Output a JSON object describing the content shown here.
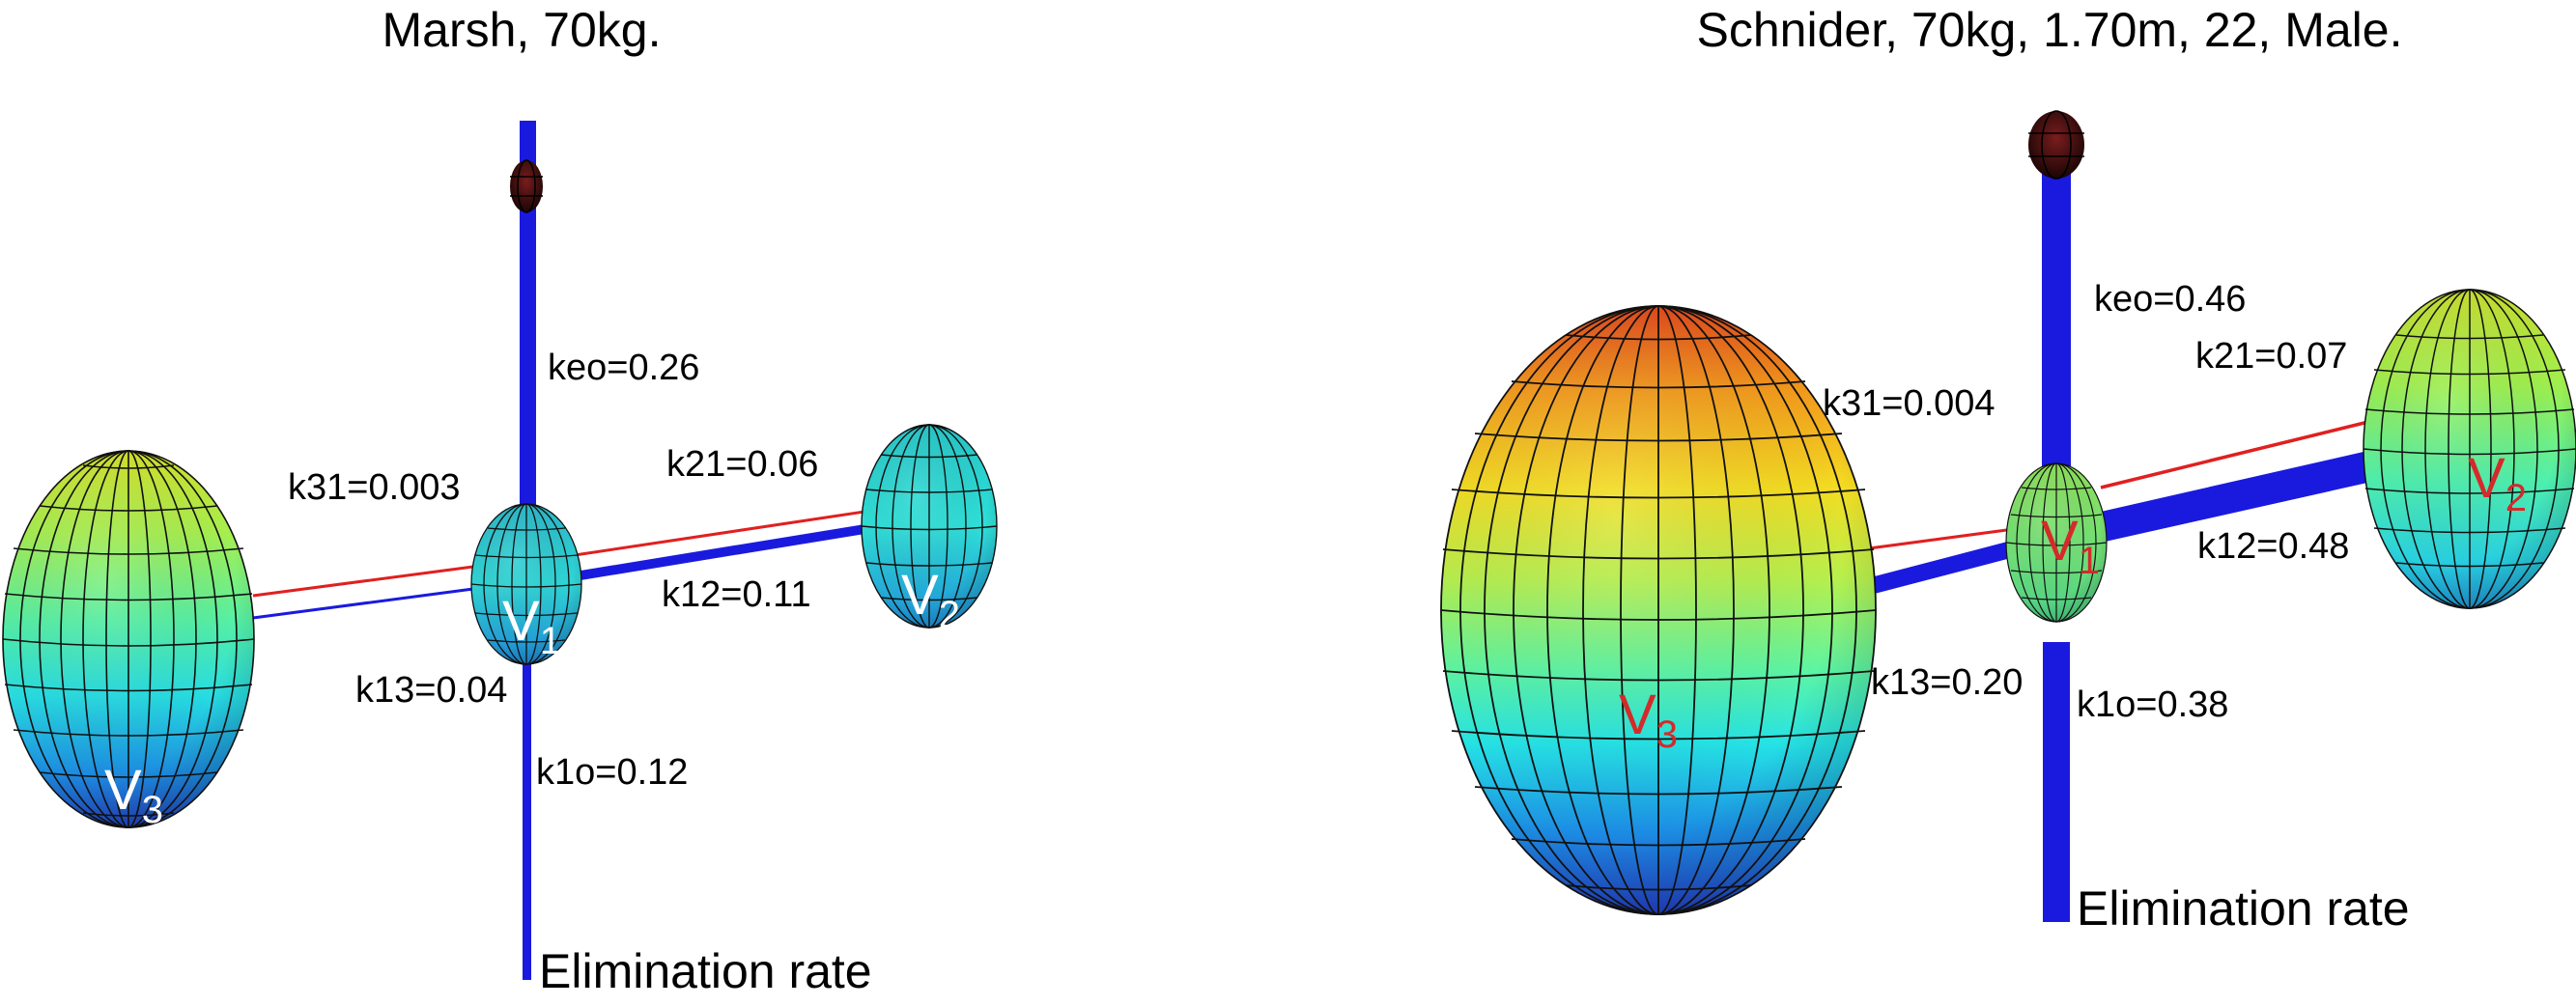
{
  "panels": [
    {
      "title": "Marsh, 70kg.",
      "keo": "keo=0.26",
      "k21": "k21=0.06",
      "k12": "k12=0.11",
      "k31": "k31=0.003",
      "k13": "k13=0.04",
      "k1o": "k1o=0.12",
      "elimination": "Elimination rate",
      "v1": {
        "letter": "V",
        "sub": "1"
      },
      "v2": {
        "letter": "V",
        "sub": "2"
      },
      "v3": {
        "letter": "V",
        "sub": "3"
      }
    },
    {
      "title": "Schnider, 70kg, 1.70m, 22, Male.",
      "keo": "keo=0.46",
      "k21": "k21=0.07",
      "k12": "k12=0.48",
      "k31": "k31=0.004",
      "k13": "k13=0.20",
      "k1o": "k1o=0.38",
      "elimination": "Elimination rate",
      "v1": {
        "letter": "V",
        "sub": "1"
      },
      "v2": {
        "letter": "V",
        "sub": "2"
      },
      "v3": {
        "letter": "V",
        "sub": "3"
      }
    }
  ],
  "colors": {
    "flow_blue": "#1a1adf",
    "flow_red": "#e02020",
    "effect_site": "#3a0a0a",
    "mesh": "#1a1a1a",
    "label_white": "#ffffff",
    "label_red": "#d42a2a"
  }
}
